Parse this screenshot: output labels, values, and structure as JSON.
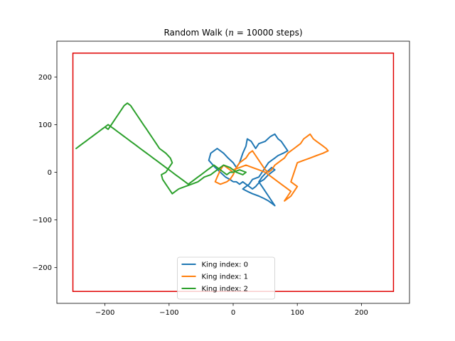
{
  "chart_data": {
    "type": "line",
    "title": "Random Walk ($n=10000$ steps)",
    "title_parts": {
      "prefix": "Random Walk (",
      "math_var": "n",
      "math_rest": " = 10000",
      "suffix": " steps)"
    },
    "xlabel": "",
    "ylabel": "",
    "xlim": [
      -275,
      275
    ],
    "ylim": [
      -275,
      275
    ],
    "xticks": [
      -200,
      -100,
      0,
      100,
      200
    ],
    "yticks": [
      -200,
      -100,
      0,
      100,
      200
    ],
    "xtick_labels": [
      "−200",
      "−100",
      "0",
      "100",
      "200"
    ],
    "ytick_labels": [
      "−200",
      "−100",
      "0",
      "100",
      "200"
    ],
    "grid": false,
    "legend_position": "lower center",
    "boundary": {
      "x_min": -250,
      "x_max": 250,
      "y_min": -250,
      "y_max": 250,
      "color": "#e00000"
    },
    "series": [
      {
        "name": "King index: 0",
        "color": "#1f77b4",
        "x": [
          0,
          -5,
          -12,
          -20,
          -28,
          -38,
          -35,
          -25,
          -15,
          -8,
          0,
          5,
          10,
          15,
          20,
          22,
          28,
          35,
          40,
          50,
          58,
          65,
          70,
          75,
          80,
          85,
          78,
          70,
          65,
          60,
          55,
          50,
          45,
          40,
          30,
          25,
          20,
          15,
          22,
          30,
          40,
          48,
          55,
          60,
          65,
          60,
          55,
          50,
          45,
          40,
          45,
          52,
          60,
          65,
          55,
          48,
          42,
          38,
          35,
          30,
          25,
          20,
          15,
          10,
          5,
          0
        ],
        "y": [
          -20,
          -15,
          -10,
          0,
          10,
          25,
          40,
          50,
          40,
          30,
          20,
          10,
          20,
          40,
          55,
          70,
          65,
          50,
          60,
          65,
          75,
          80,
          70,
          65,
          55,
          45,
          40,
          35,
          30,
          25,
          20,
          10,
          0,
          -10,
          -15,
          -25,
          -30,
          -35,
          -40,
          -45,
          -50,
          -55,
          -60,
          -65,
          -70,
          -60,
          -50,
          -40,
          -30,
          -20,
          -10,
          0,
          10,
          5,
          -5,
          -15,
          -20,
          -25,
          -30,
          -35,
          -30,
          -25,
          -20,
          -25,
          -20,
          -20
        ]
      },
      {
        "name": "King index: 1",
        "color": "#ff7f0e",
        "x": [
          0,
          -5,
          -10,
          -15,
          -20,
          -25,
          -28,
          -20,
          -10,
          -5,
          0,
          5,
          10,
          20,
          25,
          30,
          35,
          40,
          45,
          50,
          55,
          60,
          65,
          70,
          75,
          80,
          85,
          90,
          95,
          100,
          105,
          110,
          115,
          120,
          125,
          130,
          135,
          140,
          145,
          148,
          140,
          130,
          120,
          110,
          100,
          95,
          90,
          100,
          95,
          90,
          85,
          80,
          85,
          90,
          80,
          70,
          60,
          50,
          40,
          30,
          20,
          10,
          0
        ],
        "y": [
          0,
          5,
          10,
          15,
          5,
          -10,
          -20,
          -25,
          -20,
          -15,
          -5,
          10,
          20,
          30,
          40,
          45,
          35,
          25,
          15,
          5,
          0,
          5,
          15,
          20,
          25,
          30,
          40,
          45,
          50,
          55,
          60,
          70,
          75,
          80,
          70,
          65,
          60,
          55,
          50,
          45,
          40,
          35,
          30,
          25,
          20,
          0,
          -20,
          -30,
          -40,
          -50,
          -55,
          -60,
          -50,
          -40,
          -30,
          -20,
          -10,
          0,
          5,
          10,
          15,
          10,
          5
        ]
      },
      {
        "name": "King index: 2",
        "color": "#2ca02c",
        "x": [
          0,
          10,
          20,
          15,
          5,
          -5,
          -15,
          -25,
          -35,
          -45,
          -55,
          -65,
          -75,
          -85,
          -90,
          -95,
          -100,
          -105,
          -110,
          -112,
          -105,
          -100,
          -95,
          -98,
          -105,
          -115,
          -120,
          -125,
          -130,
          -135,
          -140,
          -145,
          -150,
          -155,
          -160,
          -165,
          -170,
          -175,
          -180,
          -185,
          -190,
          -195,
          -200,
          -205,
          -210,
          -215,
          -220,
          -225,
          -230,
          -235,
          -240,
          -245,
          -240,
          -235,
          -230,
          -225,
          -220,
          -215,
          -210,
          -205,
          -200,
          -195,
          -190,
          -185,
          -180,
          -175,
          -170,
          -165,
          -160,
          -155,
          -150,
          -145,
          -140,
          -135,
          -130,
          -125,
          -120,
          -115,
          -110,
          -105,
          -100,
          -95,
          -90,
          -85,
          -80,
          -75,
          -70,
          -65,
          -60,
          -55,
          -50,
          -45,
          -40,
          -35,
          -30,
          -25,
          -20,
          -15,
          -10,
          -5,
          0
        ],
        "y": [
          0,
          5,
          0,
          -5,
          0,
          10,
          15,
          5,
          -5,
          -10,
          -20,
          -25,
          -30,
          -35,
          -40,
          -45,
          -35,
          -25,
          -15,
          -5,
          0,
          10,
          20,
          30,
          40,
          50,
          60,
          70,
          80,
          90,
          100,
          110,
          120,
          130,
          140,
          145,
          140,
          130,
          120,
          110,
          100,
          90,
          95,
          90,
          85,
          80,
          75,
          70,
          65,
          60,
          55,
          50,
          55,
          60,
          65,
          70,
          75,
          80,
          85,
          90,
          95,
          100,
          95,
          90,
          85,
          80,
          75,
          70,
          65,
          60,
          55,
          50,
          45,
          40,
          35,
          30,
          25,
          20,
          15,
          10,
          5,
          0,
          -5,
          -10,
          -15,
          -20,
          -25,
          -20,
          -15,
          -10,
          -5,
          0,
          5,
          10,
          15,
          10,
          5,
          0,
          -5,
          0,
          0
        ]
      }
    ]
  }
}
